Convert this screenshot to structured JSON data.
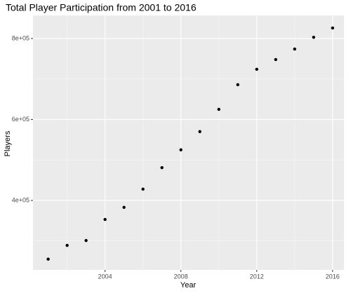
{
  "chart_data": {
    "type": "scatter",
    "title": "Total Player Participation from 2001 to 2016",
    "x_label": "Year",
    "y_label": "Players",
    "x": [
      2001,
      2002,
      2003,
      2004,
      2005,
      2006,
      2007,
      2008,
      2009,
      2010,
      2011,
      2012,
      2013,
      2014,
      2015,
      2016
    ],
    "values": [
      255000,
      289000,
      301000,
      353000,
      383000,
      428000,
      481000,
      525000,
      570000,
      625000,
      686000,
      724000,
      748000,
      774000,
      803000,
      826000
    ],
    "color": "#000000",
    "xlim": [
      2000.2,
      2016.6
    ],
    "xticks": [
      2004,
      2008,
      2012,
      2016
    ],
    "minor_xticks": [
      2002,
      2006,
      2010,
      2014
    ],
    "ylim": [
      228500,
      857000
    ],
    "yticks": [
      {
        "value": 400000,
        "label": "4e+05"
      },
      {
        "value": 600000,
        "label": "6e+05"
      },
      {
        "value": 800000,
        "label": "8e+05"
      }
    ],
    "minor_yticks": [
      300000,
      500000,
      700000
    ],
    "grid": true
  }
}
